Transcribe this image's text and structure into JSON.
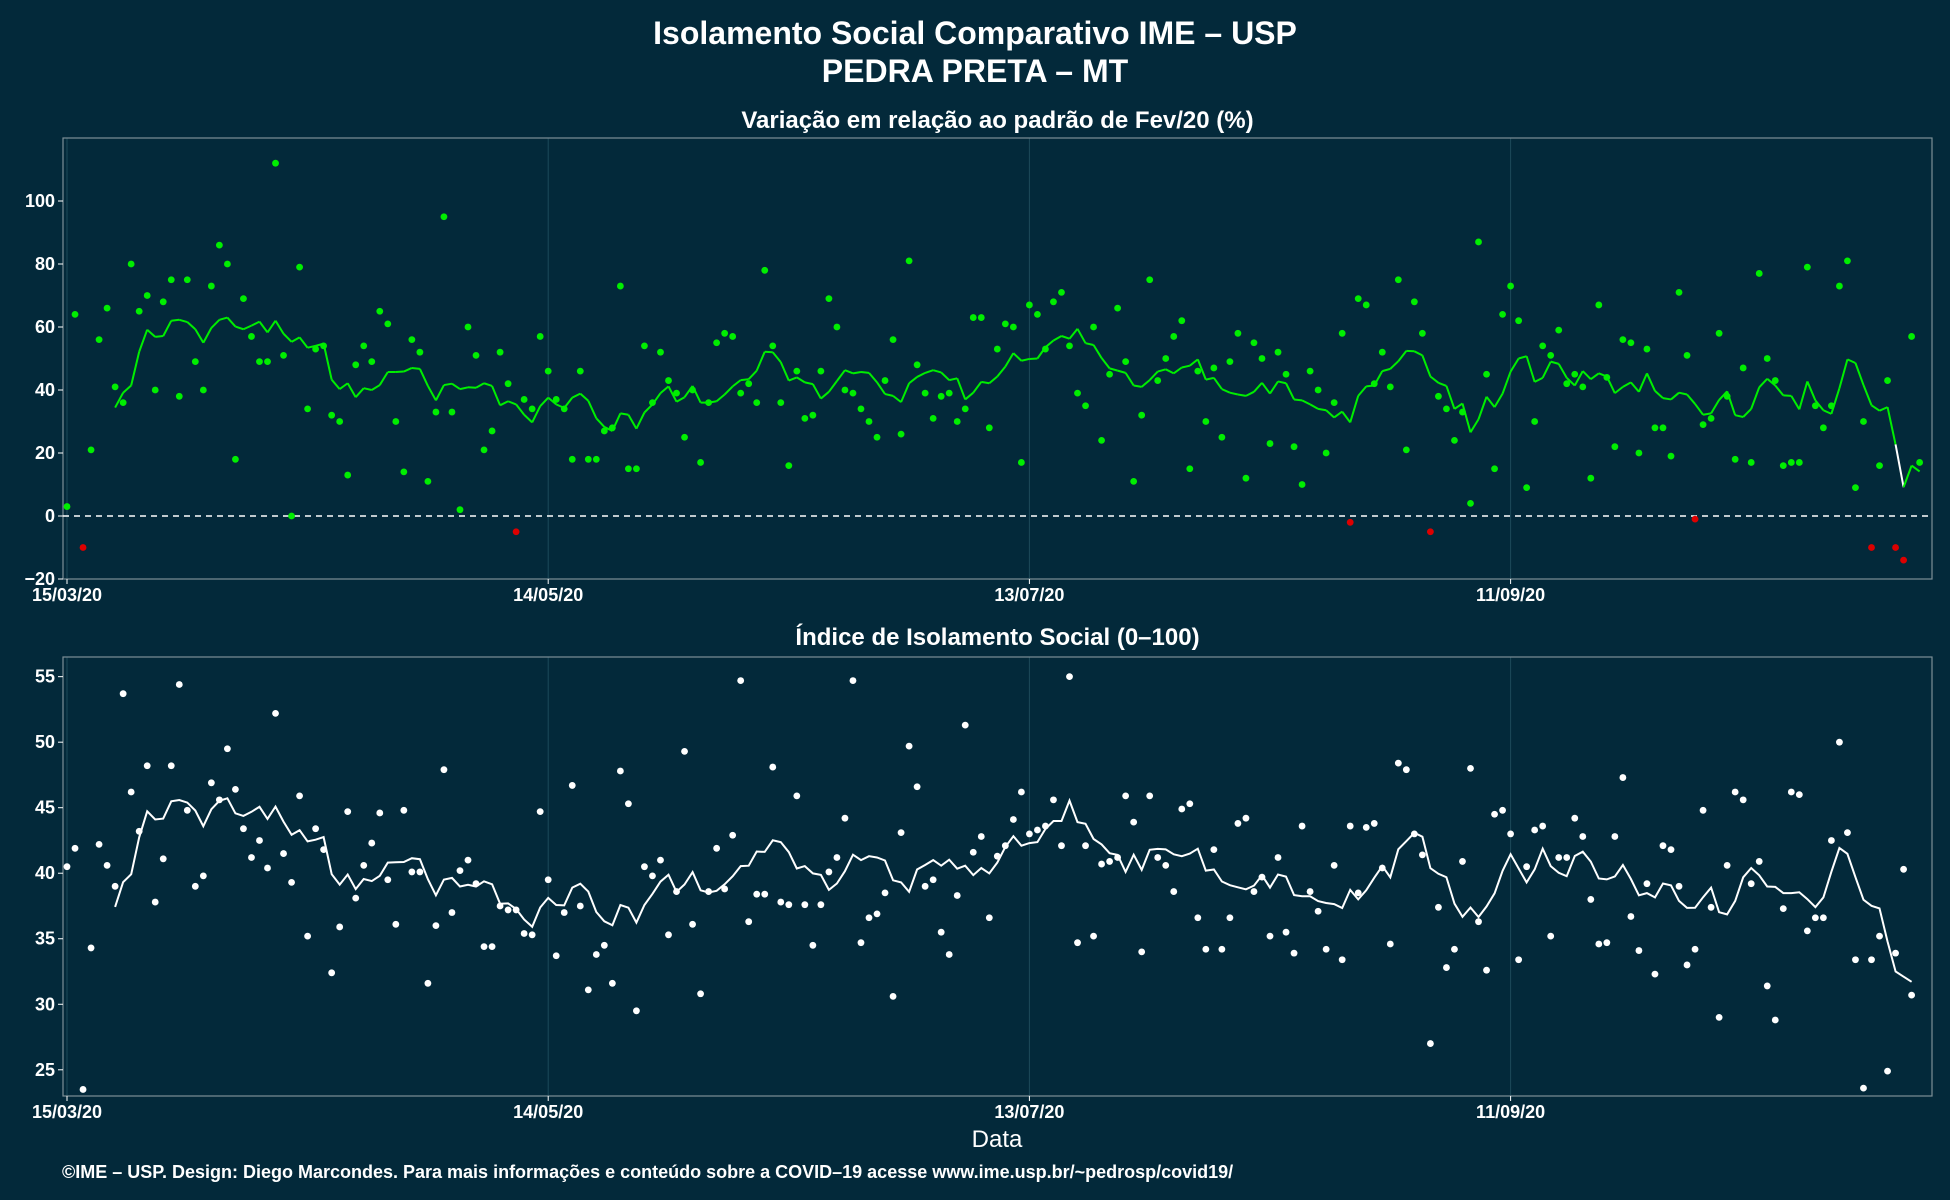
{
  "title_line1": "Isolamento Social Comparativo IME – USP",
  "title_line2": "PEDRA PRETA – MT",
  "xlabel": "Data",
  "footer": "©IME – USP. Design: Diego Marcondes. Para mais informações e conteúdo sobre a COVID–19 acesse www.ime.usp.br/~pedrosp/covid19/",
  "colors": {
    "background": "#03293a",
    "positive": "#00ee00",
    "negative": "#dd0000",
    "index": "#ffffff",
    "grid": "#1d4a5a"
  },
  "chart_data": [
    {
      "type": "scatter",
      "title": "Variação em relação ao padrão de Fev/20 (%)",
      "x_start_date": "15/03/20",
      "x_ticks": [
        "15/03/20",
        "14/05/20",
        "13/07/20",
        "11/09/20"
      ],
      "x_tick_days": [
        0,
        60,
        120,
        180
      ],
      "yticks": [
        "100",
        "80",
        "60",
        "40",
        "20",
        "0",
        "−20"
      ],
      "yticks_values": [
        100,
        80,
        60,
        40,
        20,
        0,
        -20
      ],
      "ylim": [
        -20,
        120
      ],
      "xlim": [
        0,
        233
      ],
      "reference_line": 0,
      "grid": true,
      "day_spacing": 1,
      "points": [
        3,
        64,
        -10,
        21,
        56,
        66,
        41,
        36,
        80,
        65,
        70,
        40,
        68,
        75,
        38,
        75,
        49,
        40,
        73,
        86,
        80,
        18,
        69,
        57,
        49,
        49,
        112,
        51,
        0,
        79,
        34,
        53,
        54,
        32,
        30,
        13,
        48,
        54,
        49,
        65,
        61,
        30,
        14,
        56,
        52,
        11,
        33,
        95,
        33,
        2,
        60,
        51,
        21,
        27,
        52,
        42,
        -5,
        37,
        34,
        57,
        46,
        37,
        34,
        18,
        46,
        18,
        18,
        27,
        28,
        73,
        15,
        15,
        54,
        36,
        52,
        43,
        39,
        25,
        40,
        17,
        36,
        55,
        58,
        57,
        39,
        42,
        36,
        78,
        54,
        36,
        16,
        46,
        31,
        32,
        46,
        69,
        60,
        40,
        39,
        34,
        30,
        25,
        43,
        56,
        26,
        81,
        48,
        39,
        31,
        38,
        39,
        30,
        34,
        63,
        63,
        28,
        53,
        61,
        60,
        17,
        67,
        64,
        53,
        68,
        71,
        54,
        39,
        35,
        60,
        24,
        45,
        66,
        49,
        11,
        32,
        75,
        43,
        50,
        57,
        62,
        15,
        46,
        30,
        47,
        25,
        49,
        58,
        12,
        55,
        50,
        23,
        52,
        45,
        22,
        10,
        46,
        40,
        20,
        36,
        58,
        -2,
        69,
        67,
        42,
        52,
        41,
        75,
        21,
        68,
        58,
        -5,
        38,
        34,
        24,
        33,
        4,
        87,
        45,
        15,
        64,
        73,
        62,
        9,
        30,
        54,
        51,
        59,
        42,
        45,
        41,
        12,
        67,
        44,
        22,
        56,
        55,
        20,
        53,
        28,
        28,
        19,
        71,
        51,
        -1,
        29,
        31,
        58,
        38,
        18,
        47,
        17,
        77,
        50,
        43,
        16,
        17,
        17,
        79,
        35,
        28,
        35,
        73,
        81,
        9,
        30,
        -10,
        16,
        43,
        -10,
        -14,
        57,
        17
      ]
    },
    {
      "type": "scatter",
      "title": "Índice de Isolamento Social (0–100)",
      "x_start_date": "15/03/20",
      "x_ticks": [
        "15/03/20",
        "14/05/20",
        "13/07/20",
        "11/09/20"
      ],
      "x_tick_days": [
        0,
        60,
        120,
        180
      ],
      "yticks": [
        "55",
        "50",
        "45",
        "40",
        "35",
        "30",
        "25"
      ],
      "yticks_values": [
        55,
        50,
        45,
        40,
        35,
        30,
        25
      ],
      "ylim": [
        23,
        56.5
      ],
      "xlim": [
        0,
        233
      ],
      "grid": true,
      "day_spacing": 1,
      "points": [
        40.5,
        41.9,
        23.5,
        34.3,
        42.2,
        40.6,
        39,
        53.7,
        46.2,
        43.2,
        48.2,
        37.8,
        41.1,
        48.2,
        54.4,
        44.8,
        39,
        39.8,
        46.9,
        45.6,
        49.5,
        46.4,
        43.4,
        41.2,
        42.5,
        40.4,
        52.2,
        41.5,
        39.3,
        45.9,
        35.2,
        43.4,
        41.8,
        32.4,
        35.9,
        44.7,
        38.1,
        40.6,
        42.3,
        44.6,
        39.5,
        36.1,
        44.8,
        40.1,
        40.1,
        31.6,
        36,
        47.9,
        37,
        40.2,
        41,
        39.2,
        34.4,
        34.4,
        37.5,
        37.2,
        37.2,
        35.4,
        35.3,
        44.7,
        39.5,
        33.7,
        37,
        46.7,
        37.5,
        31.1,
        33.8,
        34.5,
        31.6,
        47.8,
        45.3,
        29.5,
        40.5,
        39.8,
        41,
        35.3,
        38.6,
        49.3,
        36.1,
        30.8,
        38.6,
        41.9,
        38.8,
        42.9,
        54.7,
        36.3,
        38.4,
        38.4,
        48.1,
        37.8,
        37.6,
        45.9,
        37.6,
        34.5,
        37.6,
        40.1,
        41.2,
        44.2,
        54.7,
        34.7,
        36.6,
        36.9,
        38.5,
        30.6,
        43.1,
        49.7,
        46.6,
        39,
        39.5,
        35.5,
        33.8,
        38.3,
        51.3,
        41.6,
        42.8,
        36.6,
        41.3,
        42.1,
        44.1,
        46.2,
        43,
        43.3,
        43.6,
        45.6,
        42.1,
        55,
        34.7,
        42.1,
        35.2,
        40.7,
        40.9,
        41.2,
        45.9,
        43.9,
        34,
        45.9,
        41.2,
        40.6,
        38.6,
        44.9,
        45.3,
        36.6,
        34.2,
        41.8,
        34.2,
        36.6,
        43.8,
        44.2,
        38.6,
        39.7,
        35.2,
        41.2,
        35.5,
        33.9,
        43.6,
        38.6,
        37.1,
        34.2,
        40.6,
        33.4,
        43.6,
        38.5,
        43.5,
        43.8,
        40.4,
        34.6,
        48.4,
        47.9,
        43,
        41.4,
        27,
        37.4,
        32.8,
        34.2,
        40.9,
        48,
        36.3,
        32.6,
        44.5,
        44.8,
        43,
        33.4,
        40.5,
        43.3,
        43.6,
        35.2,
        41.2,
        41.2,
        44.2,
        42.8,
        38,
        34.6,
        34.7,
        42.8,
        47.3,
        36.7,
        34.1,
        39.2,
        32.3,
        42.1,
        41.8,
        39,
        33,
        34.2,
        44.8,
        37.4,
        29,
        40.6,
        46.2,
        45.6,
        39.2,
        40.9,
        31.4,
        28.8,
        37.3,
        46.2,
        46,
        35.6,
        36.6,
        36.6,
        42.5,
        50,
        43.1,
        33.4,
        23.6,
        33.4,
        35.2,
        24.9,
        33.9,
        40.3,
        30.7
      ]
    }
  ]
}
